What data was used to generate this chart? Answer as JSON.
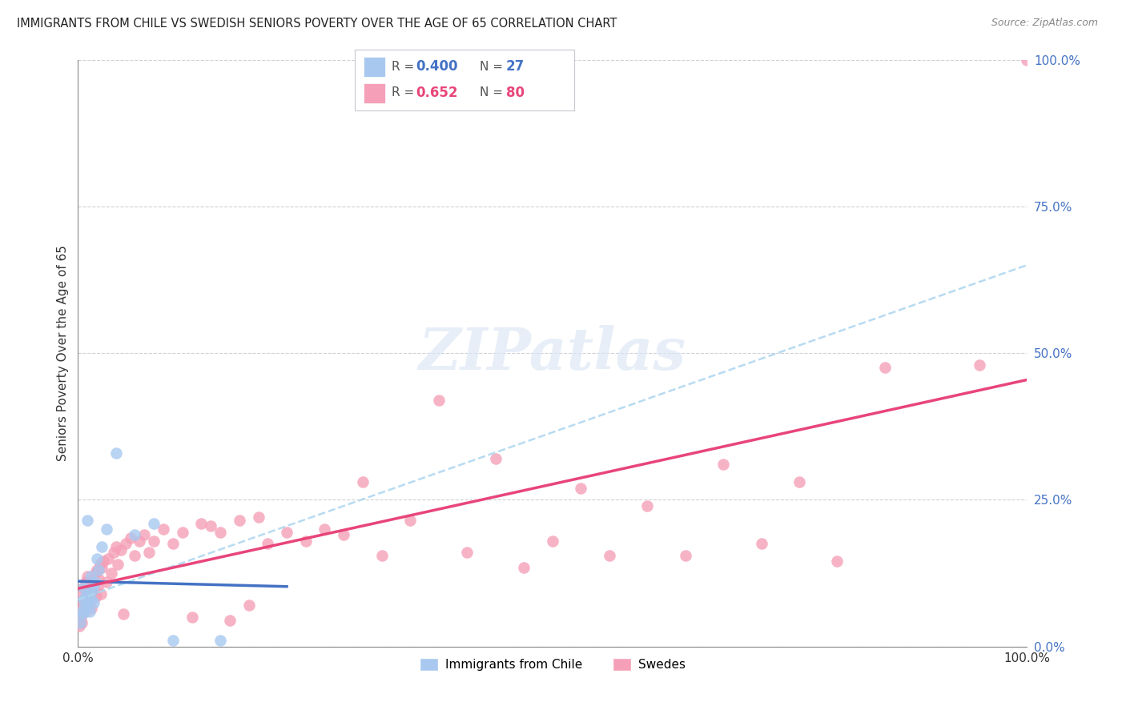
{
  "title": "IMMIGRANTS FROM CHILE VS SWEDISH SENIORS POVERTY OVER THE AGE OF 65 CORRELATION CHART",
  "source": "Source: ZipAtlas.com",
  "ylabel": "Seniors Poverty Over the Age of 65",
  "xlim": [
    0,
    1.0
  ],
  "ylim": [
    0,
    1.0
  ],
  "xtick_labels": [
    "0.0%",
    "100.0%"
  ],
  "ytick_vals_right": [
    0.0,
    0.25,
    0.5,
    0.75,
    1.0
  ],
  "ytick_labels_right": [
    "0.0%",
    "25.0%",
    "50.0%",
    "75.0%",
    "100.0%"
  ],
  "chile_R": 0.4,
  "chile_N": 27,
  "swede_R": 0.652,
  "swede_N": 80,
  "chile_color": "#a8c8f0",
  "swede_color": "#f5a0b8",
  "chile_line_color": "#4472c4",
  "swede_line_color": "#e8457a",
  "dash_line_color": "#b0d8f0",
  "background_color": "#ffffff",
  "watermark": "ZIPatlas",
  "legend_label_chile": "Immigrants from Chile",
  "legend_label_swede": "Swedes",
  "chile_points_x": [
    0.002,
    0.004,
    0.005,
    0.006,
    0.006,
    0.007,
    0.008,
    0.009,
    0.01,
    0.011,
    0.012,
    0.013,
    0.014,
    0.015,
    0.016,
    0.017,
    0.018,
    0.02,
    0.022,
    0.025,
    0.03,
    0.04,
    0.06,
    0.08,
    0.1,
    0.15,
    0.01
  ],
  "chile_points_y": [
    0.04,
    0.06,
    0.055,
    0.08,
    0.1,
    0.07,
    0.085,
    0.065,
    0.075,
    0.09,
    0.06,
    0.12,
    0.08,
    0.095,
    0.1,
    0.075,
    0.11,
    0.15,
    0.13,
    0.17,
    0.2,
    0.33,
    0.19,
    0.21,
    0.01,
    0.01,
    0.215
  ],
  "swede_points_x": [
    0.001,
    0.002,
    0.003,
    0.004,
    0.005,
    0.005,
    0.006,
    0.006,
    0.007,
    0.008,
    0.008,
    0.009,
    0.01,
    0.01,
    0.011,
    0.012,
    0.013,
    0.014,
    0.015,
    0.016,
    0.017,
    0.018,
    0.019,
    0.02,
    0.021,
    0.022,
    0.023,
    0.024,
    0.025,
    0.027,
    0.03,
    0.032,
    0.035,
    0.038,
    0.04,
    0.042,
    0.045,
    0.048,
    0.05,
    0.055,
    0.06,
    0.065,
    0.07,
    0.075,
    0.08,
    0.09,
    0.1,
    0.11,
    0.12,
    0.13,
    0.14,
    0.15,
    0.16,
    0.17,
    0.18,
    0.19,
    0.2,
    0.22,
    0.24,
    0.26,
    0.28,
    0.3,
    0.32,
    0.35,
    0.38,
    0.41,
    0.44,
    0.47,
    0.5,
    0.53,
    0.56,
    0.6,
    0.64,
    0.68,
    0.72,
    0.76,
    0.8,
    0.85,
    0.95,
    1.0
  ],
  "swede_points_y": [
    0.035,
    0.045,
    0.05,
    0.04,
    0.065,
    0.09,
    0.075,
    0.1,
    0.06,
    0.08,
    0.11,
    0.07,
    0.085,
    0.12,
    0.075,
    0.09,
    0.1,
    0.065,
    0.11,
    0.095,
    0.105,
    0.125,
    0.085,
    0.13,
    0.1,
    0.115,
    0.14,
    0.09,
    0.135,
    0.145,
    0.11,
    0.15,
    0.125,
    0.16,
    0.17,
    0.14,
    0.165,
    0.055,
    0.175,
    0.185,
    0.155,
    0.18,
    0.19,
    0.16,
    0.18,
    0.2,
    0.175,
    0.195,
    0.05,
    0.21,
    0.205,
    0.195,
    0.045,
    0.215,
    0.07,
    0.22,
    0.175,
    0.195,
    0.18,
    0.2,
    0.19,
    0.28,
    0.155,
    0.215,
    0.42,
    0.16,
    0.32,
    0.135,
    0.18,
    0.27,
    0.155,
    0.24,
    0.155,
    0.31,
    0.175,
    0.28,
    0.145,
    0.475,
    0.48,
    1.0
  ],
  "chile_line_x": [
    0.0,
    0.22
  ],
  "swede_line_x": [
    0.0,
    1.0
  ],
  "dash_line_x": [
    0.0,
    1.0
  ]
}
